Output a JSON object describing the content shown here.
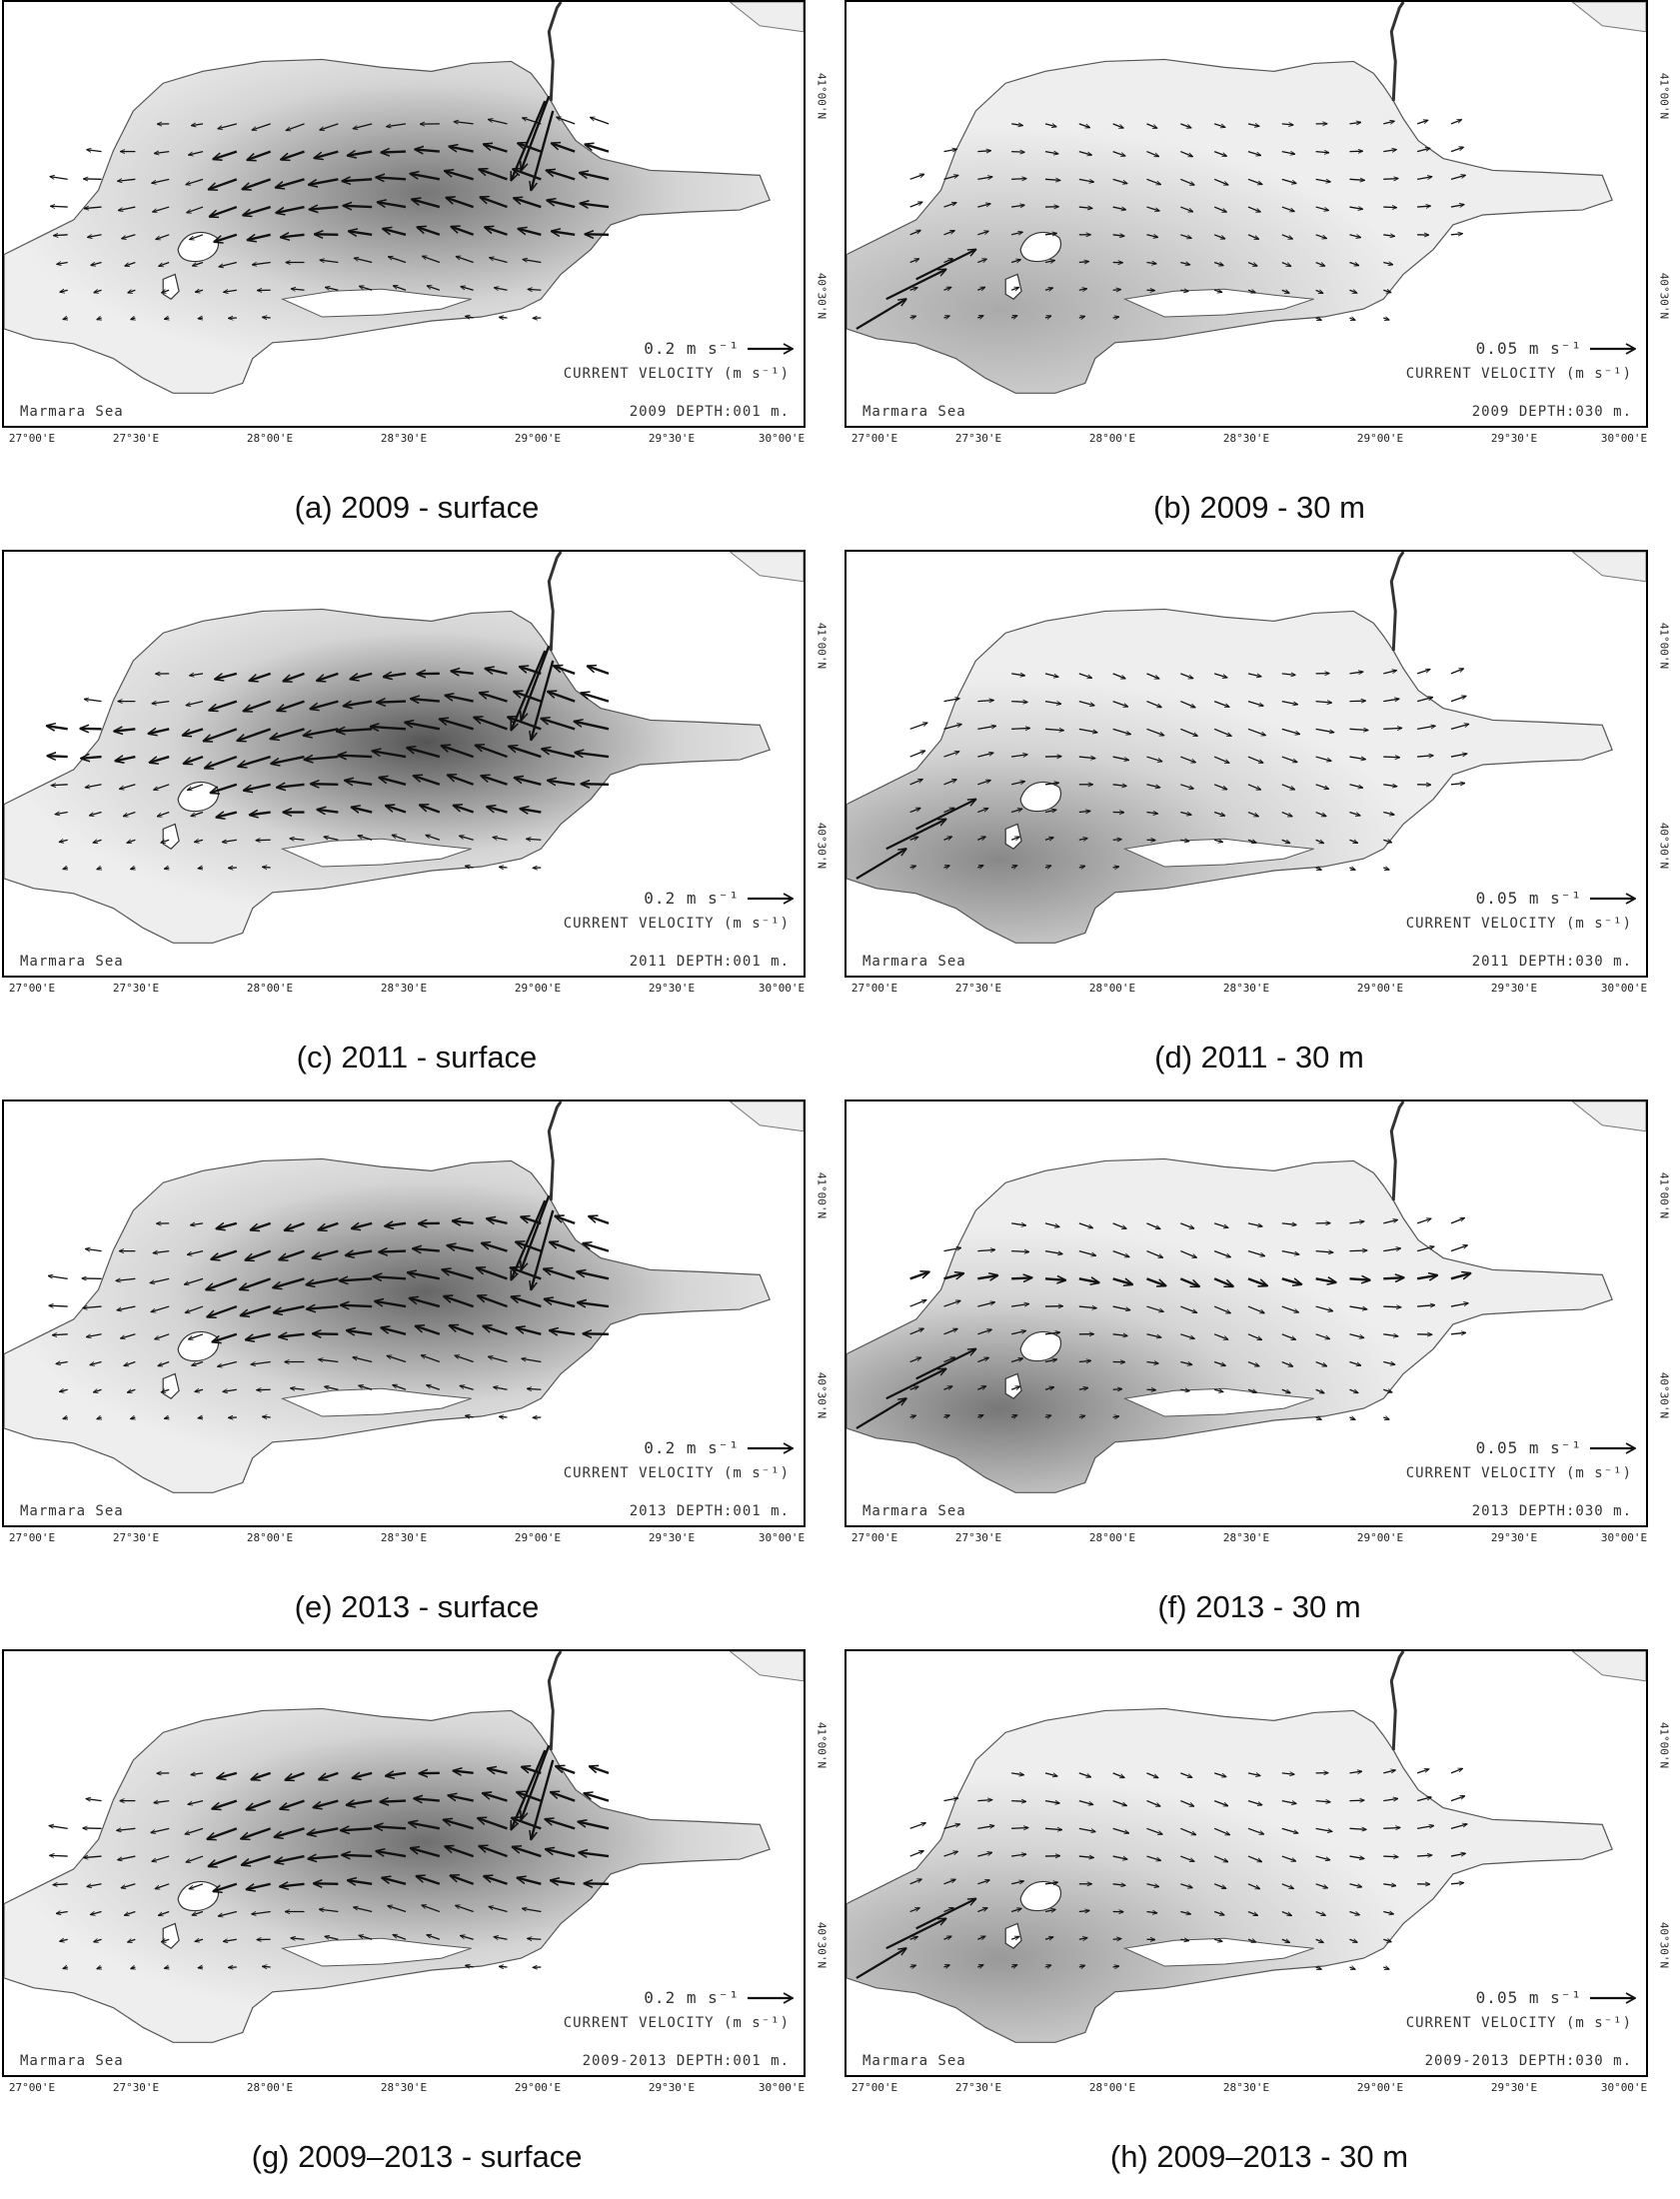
{
  "common": {
    "region_label": "Marmara Sea",
    "velocity_label": "CURRENT VELOCITY (m s⁻¹)",
    "lon_ticks": [
      "27°00'E",
      "27°30'E",
      "28°00'E",
      "28°30'E",
      "29°00'E",
      "29°30'E",
      "30°00'E"
    ],
    "lat_ticks": [
      "40°30'N",
      "41°00'N"
    ],
    "land_color": "#ffffff",
    "water_base_color": "#eeeeee",
    "arrow_color": "#111111"
  },
  "panels": [
    {
      "caption": "(a) 2009 - surface",
      "depth_label": "2009 DEPTH:001 m.",
      "scale": "0.2 m s⁻¹",
      "kind": "surface",
      "intensity": 0.8
    },
    {
      "caption": "(b) 2009 - 30 m",
      "depth_label": "2009 DEPTH:030 m.",
      "scale": "0.05 m s⁻¹",
      "kind": "deep",
      "intensity": 0.5
    },
    {
      "caption": "(c) 2011 - surface",
      "depth_label": "2011 DEPTH:001 m.",
      "scale": "0.2 m s⁻¹",
      "kind": "surface",
      "intensity": 1.0
    },
    {
      "caption": "(d) 2011 - 30 m",
      "depth_label": "2011 DEPTH:030 m.",
      "scale": "0.05 m s⁻¹",
      "kind": "deep",
      "intensity": 0.7
    },
    {
      "caption": "(e) 2013 - surface",
      "depth_label": "2013 DEPTH:001 m.",
      "scale": "0.2 m s⁻¹",
      "kind": "surface",
      "intensity": 0.9
    },
    {
      "caption": "(f) 2013 - 30 m",
      "depth_label": "2013 DEPTH:030 m.",
      "scale": "0.05 m s⁻¹",
      "kind": "deep",
      "intensity": 0.8
    },
    {
      "caption": "(g) 2009–2013 - surface",
      "depth_label": "2009-2013 DEPTH:001 m.",
      "scale": "0.2 m s⁻¹",
      "kind": "surface",
      "intensity": 0.85
    },
    {
      "caption": "(h) 2009–2013 - 30 m",
      "depth_label": "2009-2013 DEPTH:030 m.",
      "scale": "0.05 m s⁻¹",
      "kind": "deep",
      "intensity": 0.6
    }
  ]
}
